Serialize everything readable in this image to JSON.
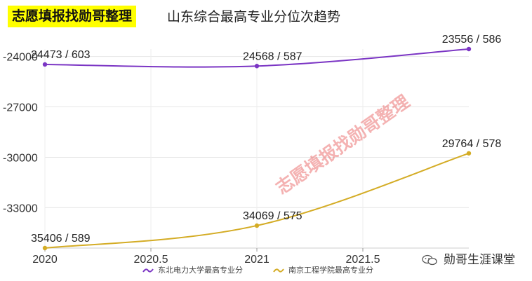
{
  "header": {
    "badge": "志愿填报找勋哥整理",
    "title": "山东综合最高专业分位次趋势"
  },
  "watermark": "志愿填报找勋哥整理",
  "brand": {
    "name": "勋哥生涯课堂",
    "icon": "wechat-icon"
  },
  "colors": {
    "series1": "#7b35c4",
    "series2": "#d4ac25",
    "badge_bg": "#ffff00",
    "grid": "#e6e6e6"
  },
  "chart_data": {
    "type": "line",
    "title": "山东综合最高专业分位次趋势",
    "x_ticks": [
      2020,
      2020.5,
      2021,
      2021.5
    ],
    "x_tick_labels": [
      "2020",
      "2020.5",
      "2021",
      "2021.5"
    ],
    "y_ticks": [
      -24000,
      -27000,
      -30000,
      -33000
    ],
    "y_tick_labels": [
      "-24000",
      "-27000",
      "-30000",
      "-33000"
    ],
    "xlim": [
      2020,
      2022
    ],
    "ylim": [
      -35406,
      -23556
    ],
    "series": [
      {
        "name": "东北电力大学最高专业分",
        "color": "#7b35c4",
        "x": [
          2020,
          2021,
          2022
        ],
        "y": [
          -24473,
          -24568,
          -23556
        ],
        "labels": [
          "24473 / 603",
          "24568 / 587",
          "23556 / 586"
        ]
      },
      {
        "name": "南京工程学院最高专业分",
        "color": "#d4ac25",
        "x": [
          2020,
          2021,
          2022
        ],
        "y": [
          -35406,
          -34069,
          -29764
        ],
        "labels": [
          "35406 / 589",
          "34069 / 575",
          "29764 / 578"
        ]
      }
    ],
    "legend_position": "bottom-center"
  }
}
